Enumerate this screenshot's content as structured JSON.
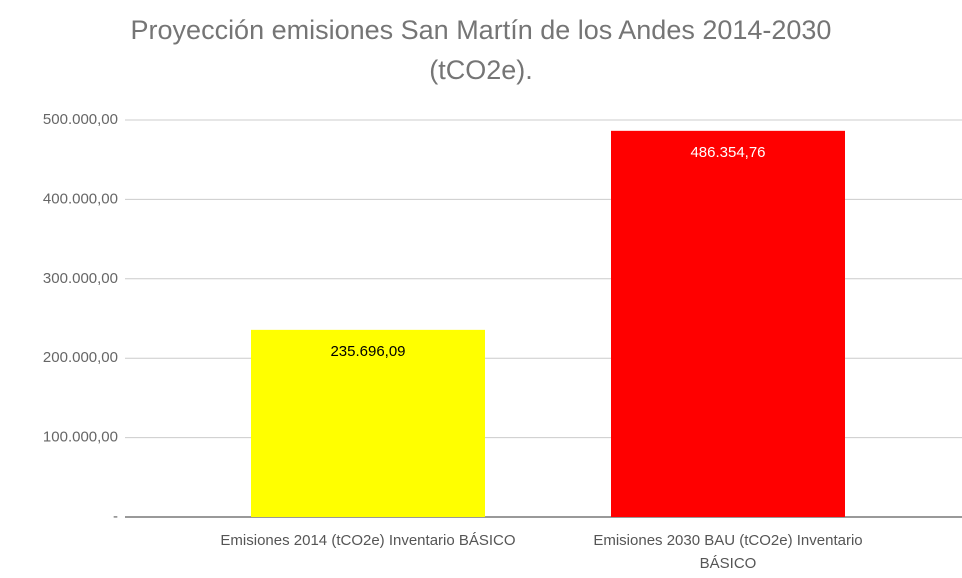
{
  "chart_data": {
    "type": "bar",
    "title": "Proyección emisiones San Martín de los Andes 2014-2030 (tCO2e).",
    "categories": [
      "Emisiones 2014 (tCO2e) Inventario BÁSICO",
      "Emisiones 2030 BAU (tCO2e) Inventario BÁSICO"
    ],
    "values": [
      235696.09,
      486354.76
    ],
    "value_labels": [
      "235.696,09",
      "486.354,76"
    ],
    "colors": [
      "#ffff00",
      "#ff0000"
    ],
    "ylim": [
      0,
      500000
    ],
    "yticks": [
      {
        "value": 0,
        "label": "-"
      },
      {
        "value": 100000,
        "label": "100.000,00"
      },
      {
        "value": 200000,
        "label": "200.000,00"
      },
      {
        "value": 300000,
        "label": "300.000,00"
      },
      {
        "value": 400000,
        "label": "400.000,00"
      },
      {
        "value": 500000,
        "label": "500.000,00"
      }
    ],
    "grid": true
  }
}
